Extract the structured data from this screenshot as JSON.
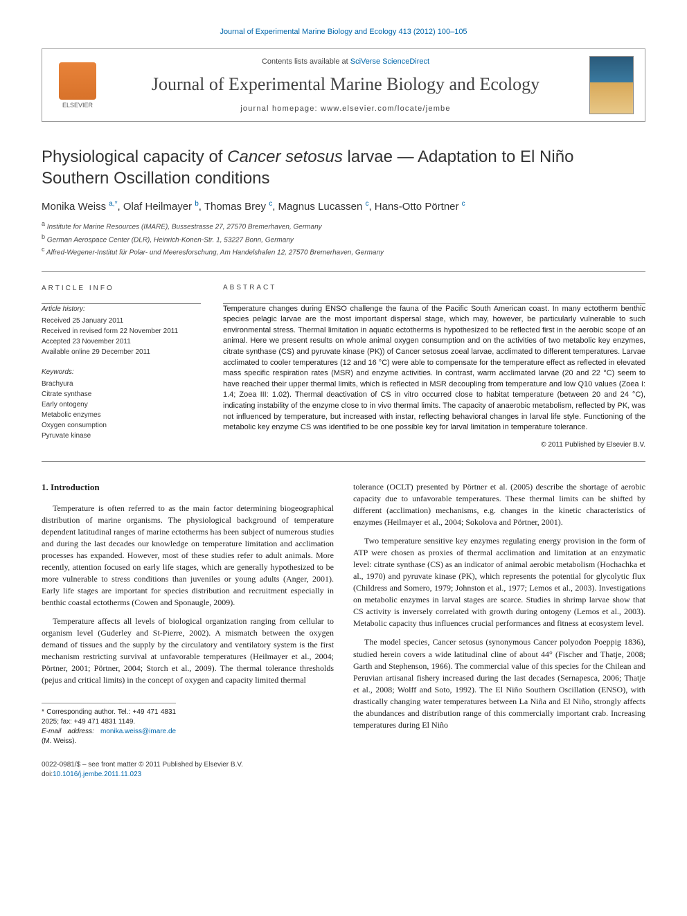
{
  "top_link": "Journal of Experimental Marine Biology and Ecology 413 (2012) 100–105",
  "header": {
    "elsevier": "ELSEVIER",
    "contents_prefix": "Contents lists available at ",
    "contents_link": "SciVerse ScienceDirect",
    "journal": "Journal of Experimental Marine Biology and Ecology",
    "homepage": "journal homepage: www.elsevier.com/locate/jembe"
  },
  "title_before_em": "Physiological capacity of ",
  "title_em": "Cancer setosus",
  "title_after_em": " larvae — Adaptation to El Niño Southern Oscillation conditions",
  "authors_html": "Monika Weiss <sup>a,*</sup>, Olaf Heilmayer <sup>b</sup>, Thomas Brey <sup>c</sup>, Magnus Lucassen <sup>c</sup>, Hans-Otto Pörtner <sup>c</sup>",
  "affiliations": {
    "a": "Institute for Marine Resources (IMARE), Bussestrasse 27, 27570 Bremerhaven, Germany",
    "b": "German Aerospace Center (DLR), Heinrich-Konen-Str. 1, 53227 Bonn, Germany",
    "c": "Alfred-Wegener-Institut für Polar- und Meeresforschung, Am Handelshafen 12, 27570 Bremerhaven, Germany"
  },
  "article_info_label": "ARTICLE INFO",
  "history_label": "Article history:",
  "history": {
    "received": "Received 25 January 2011",
    "revised": "Received in revised form 22 November 2011",
    "accepted": "Accepted 23 November 2011",
    "online": "Available online 29 December 2011"
  },
  "keywords_label": "Keywords:",
  "keywords": [
    "Brachyura",
    "Citrate synthase",
    "Early ontogeny",
    "Metabolic enzymes",
    "Oxygen consumption",
    "Pyruvate kinase"
  ],
  "abstract_label": "ABSTRACT",
  "abstract": "Temperature changes during ENSO challenge the fauna of the Pacific South American coast. In many ectotherm benthic species pelagic larvae are the most important dispersal stage, which may, however, be particularly vulnerable to such environmental stress. Thermal limitation in aquatic ectotherms is hypothesized to be reflected first in the aerobic scope of an animal. Here we present results on whole animal oxygen consumption and on the activities of two metabolic key enzymes, citrate synthase (CS) and pyruvate kinase (PK)) of Cancer setosus zoeal larvae, acclimated to different temperatures. Larvae acclimated to cooler temperatures (12 and 16 °C) were able to compensate for the temperature effect as reflected in elevated mass specific respiration rates (MSR) and enzyme activities. In contrast, warm acclimated larvae (20 and 22 °C) seem to have reached their upper thermal limits, which is reflected in MSR decoupling from temperature and low Q10 values (Zoea I: 1.4; Zoea III: 1.02). Thermal deactivation of CS in vitro occurred close to habitat temperature (between 20 and 24 °C), indicating instability of the enzyme close to in vivo thermal limits. The capacity of anaerobic metabolism, reflected by PK, was not influenced by temperature, but increased with instar, reflecting behavioral changes in larval life style. Functioning of the metabolic key enzyme CS was identified to be one possible key for larval limitation in temperature tolerance.",
  "copyright": "© 2011 Published by Elsevier B.V.",
  "intro_heading": "1. Introduction",
  "p1": "Temperature is often referred to as the main factor determining biogeographical distribution of marine organisms. The physiological background of temperature dependent latitudinal ranges of marine ectotherms has been subject of numerous studies and during the last decades our knowledge on temperature limitation and acclimation processes has expanded. However, most of these studies refer to adult animals. More recently, attention focused on early life stages, which are generally hypothesized to be more vulnerable to stress conditions than juveniles or young adults (Anger, 2001). Early life stages are important for species distribution and recruitment especially in benthic coastal ectotherms (Cowen and Sponaugle, 2009).",
  "p2": "Temperature affects all levels of biological organization ranging from cellular to organism level (Guderley and St-Pierre, 2002). A mismatch between the oxygen demand of tissues and the supply by the circulatory and ventilatory system is the first mechanism restricting survival at unfavorable temperatures (Heilmayer et al., 2004; Pörtner, 2001; Pörtner, 2004; Storch et al., 2009). The thermal tolerance thresholds (pejus and critical limits) in the concept of oxygen and capacity limited thermal",
  "p3": "tolerance (OCLT) presented by Pörtner et al. (2005) describe the shortage of aerobic capacity due to unfavorable temperatures. These thermal limits can be shifted by different (acclimation) mechanisms, e.g. changes in the kinetic characteristics of enzymes (Heilmayer et al., 2004; Sokolova and Pörtner, 2001).",
  "p4": "Two temperature sensitive key enzymes regulating energy provision in the form of ATP were chosen as proxies of thermal acclimation and limitation at an enzymatic level: citrate synthase (CS) as an indicator of animal aerobic metabolism (Hochachka et al., 1970) and pyruvate kinase (PK), which represents the potential for glycolytic flux (Childress and Somero, 1979; Johnston et al., 1977; Lemos et al., 2003). Investigations on metabolic enzymes in larval stages are scarce. Studies in shrimp larvae show that CS activity is inversely correlated with growth during ontogeny (Lemos et al., 2003). Metabolic capacity thus influences crucial performances and fitness at ecosystem level.",
  "p5": "The model species, Cancer setosus (synonymous Cancer polyodon Poeppig 1836), studied herein covers a wide latitudinal cline of about 44° (Fischer and Thatje, 2008; Garth and Stephenson, 1966). The commercial value of this species for the Chilean and Peruvian artisanal fishery increased during the last decades (Sernapesca, 2006; Thatje et al., 2008; Wolff and Soto, 1992). The El Niño Southern Oscillation (ENSO), with drastically changing water temperatures between La Niña and El Niño, strongly affects the abundances and distribution range of this commercially important crab. Increasing temperatures during El Niño",
  "footnote_corr": "* Corresponding author. Tel.: +49 471 4831 2025; fax: +49 471 4831 1149.",
  "footnote_email_label": "E-mail address: ",
  "footnote_email": "monika.weiss@imare.de",
  "footnote_email_suffix": " (M. Weiss).",
  "footer_issn": "0022-0981/$ – see front matter © 2011 Published by Elsevier B.V.",
  "footer_doi_prefix": "doi:",
  "footer_doi": "10.1016/j.jembe.2011.11.023",
  "colors": {
    "link": "#0066aa",
    "text": "#333333",
    "rule": "#888888"
  }
}
